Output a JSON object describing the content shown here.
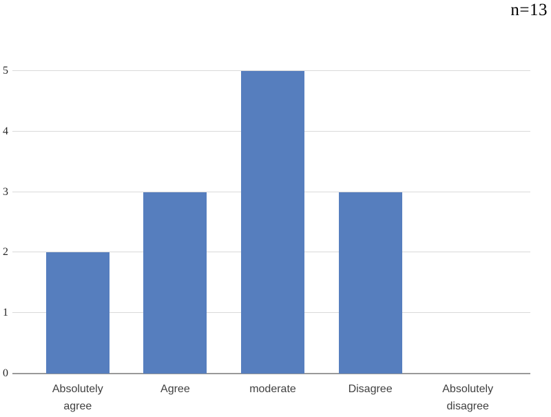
{
  "annotation": {
    "text": "n=13"
  },
  "chart_data": {
    "type": "bar",
    "categories": [
      "Absolutely agree",
      "Agree",
      "moderate",
      "Disagree",
      "Absolutely disagree"
    ],
    "values": [
      2,
      3,
      5,
      3,
      0
    ],
    "title": "",
    "xlabel": "",
    "ylabel": "",
    "ylim": [
      0,
      5
    ],
    "yticks": [
      0,
      1,
      2,
      3,
      4,
      5
    ],
    "annotation": "n=13",
    "grid": true,
    "legend": false,
    "colors": {
      "bar": "#567EBE",
      "gridline": "#D9D9D9",
      "axis_line": "#999999",
      "tick_label": "#262626",
      "category_label": "#3F3F3F"
    }
  }
}
